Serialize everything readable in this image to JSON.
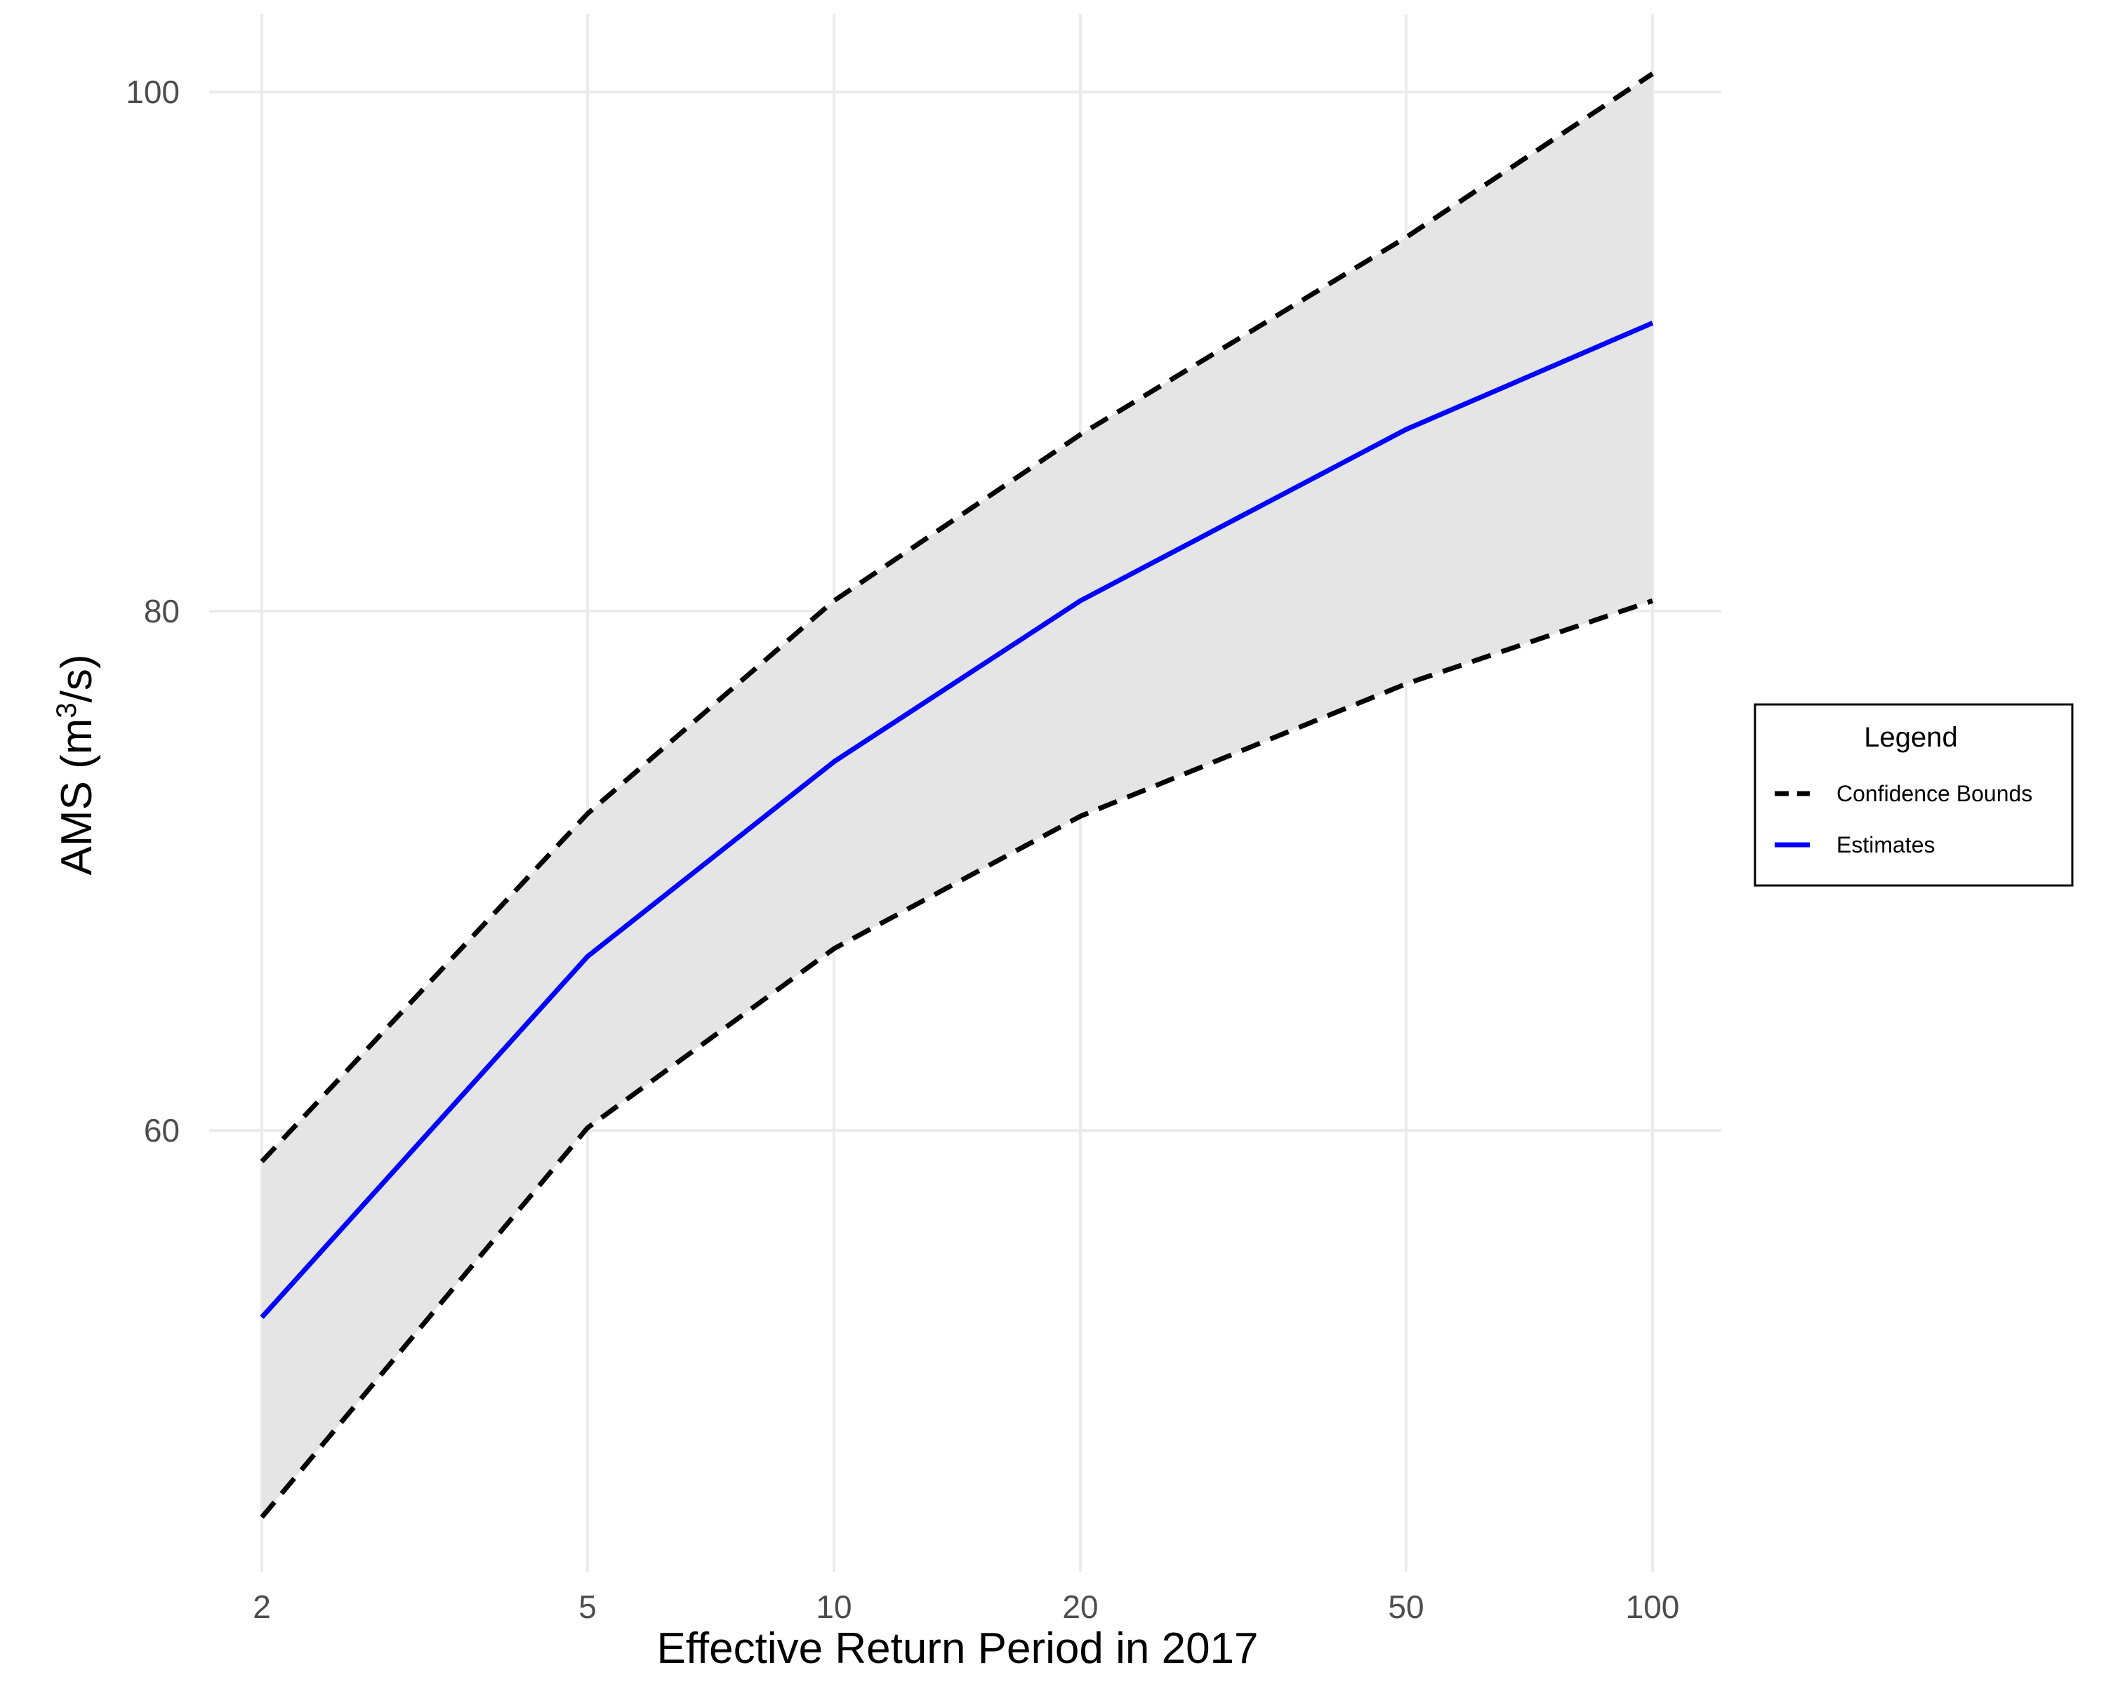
{
  "chart_data": {
    "type": "line",
    "xscale": "log",
    "x": [
      2,
      5,
      10,
      20,
      50,
      100
    ],
    "xticks": [
      "2",
      "5",
      "10",
      "20",
      "50",
      "100"
    ],
    "yticks": [
      "60",
      "80",
      "100"
    ],
    "ylim": [
      43,
      103
    ],
    "xlabel": "Effective Return Period in 2017",
    "ylabel_main": "AMS (m",
    "ylabel_sup": "3",
    "ylabel_tail": "/s)",
    "grid": true,
    "series": [
      {
        "name": "Estimates",
        "style": "solid",
        "color": "#0000ff",
        "values": [
          52.8,
          66.7,
          74.2,
          80.4,
          87.0,
          91.1
        ]
      },
      {
        "role": "upper",
        "style": "dashed",
        "color": "#000000",
        "values": [
          58.8,
          72.2,
          80.4,
          86.8,
          94.4,
          100.7
        ]
      },
      {
        "role": "lower",
        "style": "dashed",
        "color": "#000000",
        "values": [
          45.1,
          60.1,
          67.0,
          72.1,
          77.2,
          80.4
        ]
      }
    ],
    "band_color": "#e5e5e5",
    "legend": {
      "title": "Legend",
      "position": "right",
      "entries": [
        {
          "label": "Confidence Bounds",
          "style": "dashed",
          "color": "#000000"
        },
        {
          "label": "Estimates",
          "style": "solid",
          "color": "#0000ff"
        }
      ]
    }
  }
}
